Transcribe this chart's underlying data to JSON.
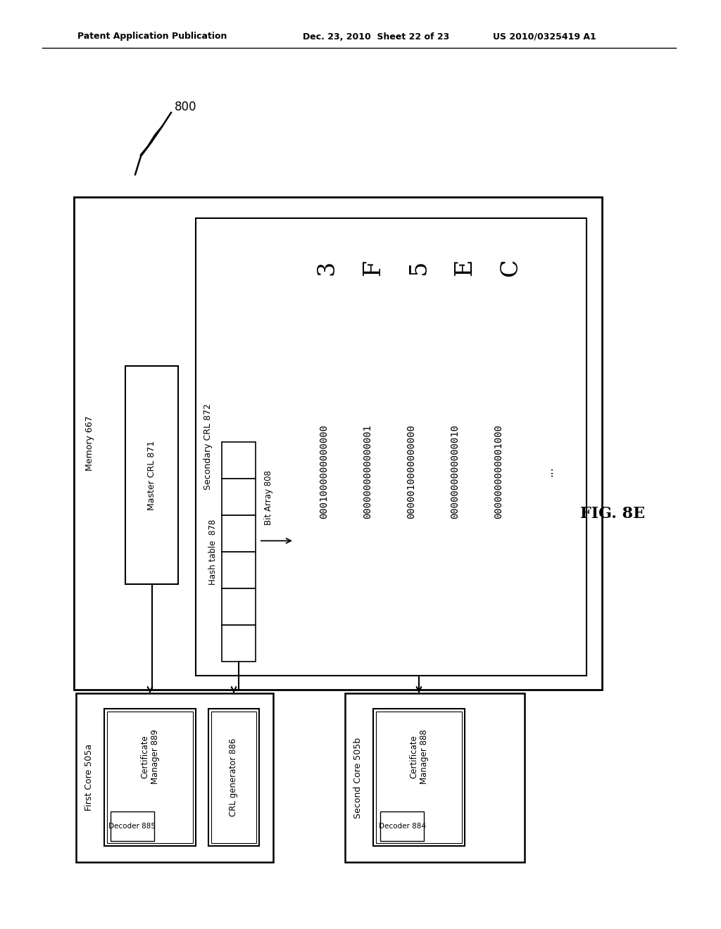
{
  "header_left": "Patent Application Publication",
  "header_mid": "Dec. 23, 2010  Sheet 22 of 23",
  "header_right": "US 2010/0325419 A1",
  "fig_label": "FIG. 8E",
  "diagram_label": "800",
  "memory_label": "Memory 667",
  "master_crl_label": "Master CRL 871",
  "secondary_crl_label": "Secondary CRL 872",
  "hash_table_label": "Hash table  878",
  "bit_array_label": "Bit Array 808",
  "hex_labels": [
    "3",
    "F",
    "5",
    "E",
    "C"
  ],
  "binary_rows": [
    "0001000000000000",
    "0000000000000001",
    "0000010000000000",
    "0000000000000010",
    "0000000000001000"
  ],
  "ellipsis": "...",
  "first_core_label": "First Core 505a",
  "cert_mgr1_label": "Certificate\nManager 889",
  "decoder1_label": "Decoder 885",
  "crl_gen_label": "CRL generator 886",
  "second_core_label": "Second Core 505b",
  "cert_mgr2_label": "Certificate\nManager 888",
  "decoder2_label": "Decoder 884",
  "bg_color": "#ffffff",
  "line_color": "#000000"
}
